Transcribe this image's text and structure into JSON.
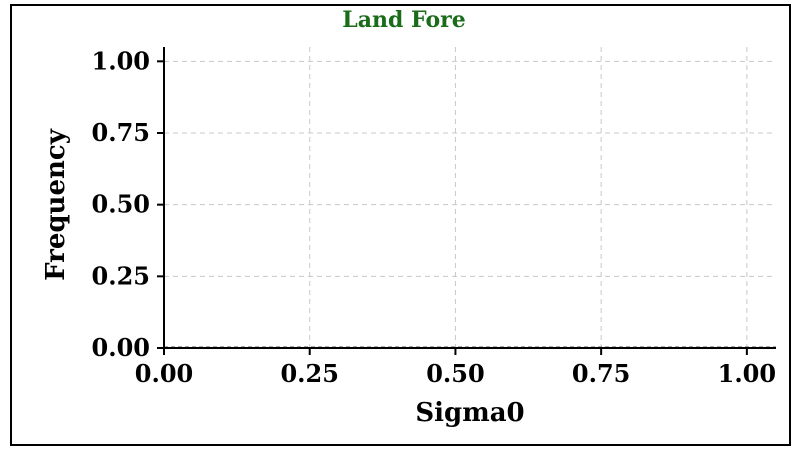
{
  "chart_data": {
    "type": "bar",
    "title": "Land Fore",
    "title_color": "#1a6b1a",
    "xlabel": "Sigma0",
    "ylabel": "Frequency",
    "xlim": [
      0,
      1.05
    ],
    "ylim": [
      0,
      1.05
    ],
    "xticks": [
      "0.00",
      "0.25",
      "0.50",
      "0.75",
      "1.00"
    ],
    "xtick_values": [
      0,
      0.25,
      0.5,
      0.75,
      1.0
    ],
    "yticks": [
      "0.00",
      "0.25",
      "0.50",
      "0.75",
      "1.00"
    ],
    "ytick_values": [
      0,
      0.25,
      0.5,
      0.75,
      1.0
    ],
    "grid": true,
    "series": [],
    "values": []
  }
}
